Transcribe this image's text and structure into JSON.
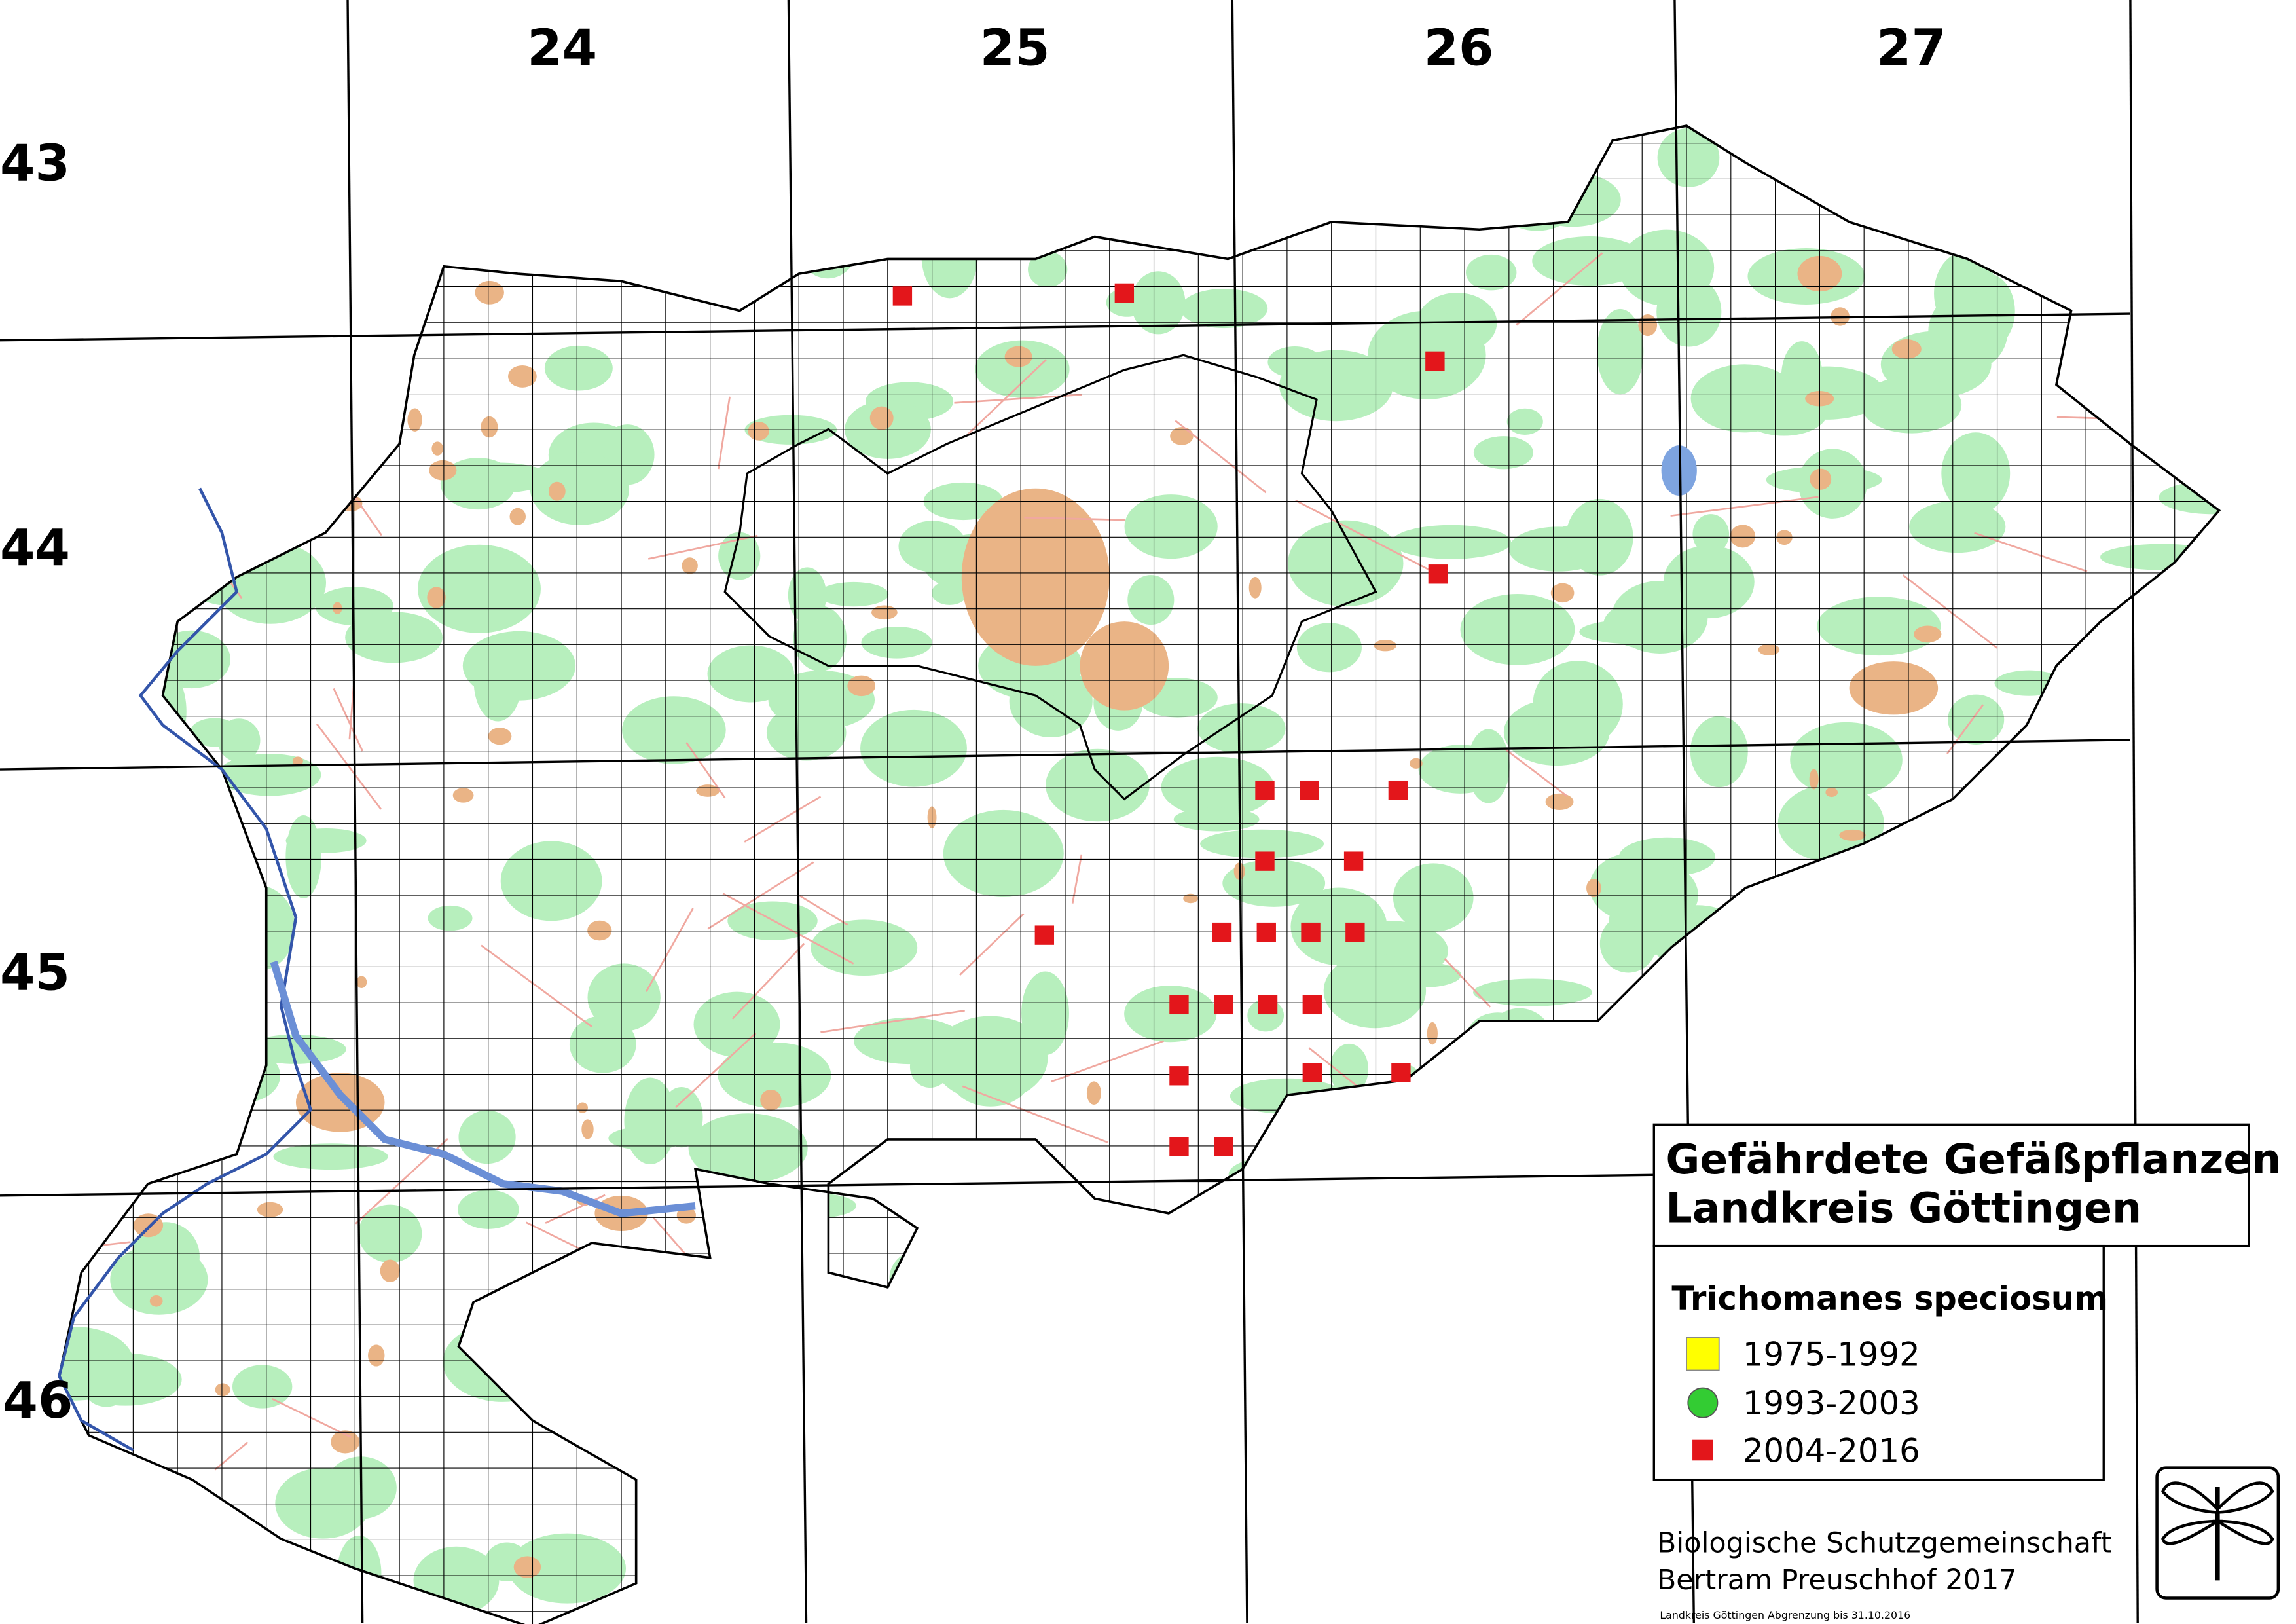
{
  "grid": {
    "columns": [
      "24",
      "25",
      "26",
      "27"
    ],
    "rows": [
      "43",
      "44",
      "45",
      "46"
    ]
  },
  "legend": {
    "title": [
      "Gefährdete Gefäßpflanzen",
      "Landkreis Göttingen"
    ],
    "species": "Trichomanes speciosum",
    "periods": [
      {
        "label": "1975-1992",
        "color": "#ffff00"
      },
      {
        "label": "1993-2003",
        "color": "#33cc33"
      },
      {
        "label": "2004-2016",
        "color": "#e3161b"
      }
    ]
  },
  "credit": [
    "Biologische Schutzgemeinschaft",
    "Bertram Preuschhof 2017"
  ],
  "note": "Landkreis Göttingen Abgrenzung bis 31.10.2016"
}
